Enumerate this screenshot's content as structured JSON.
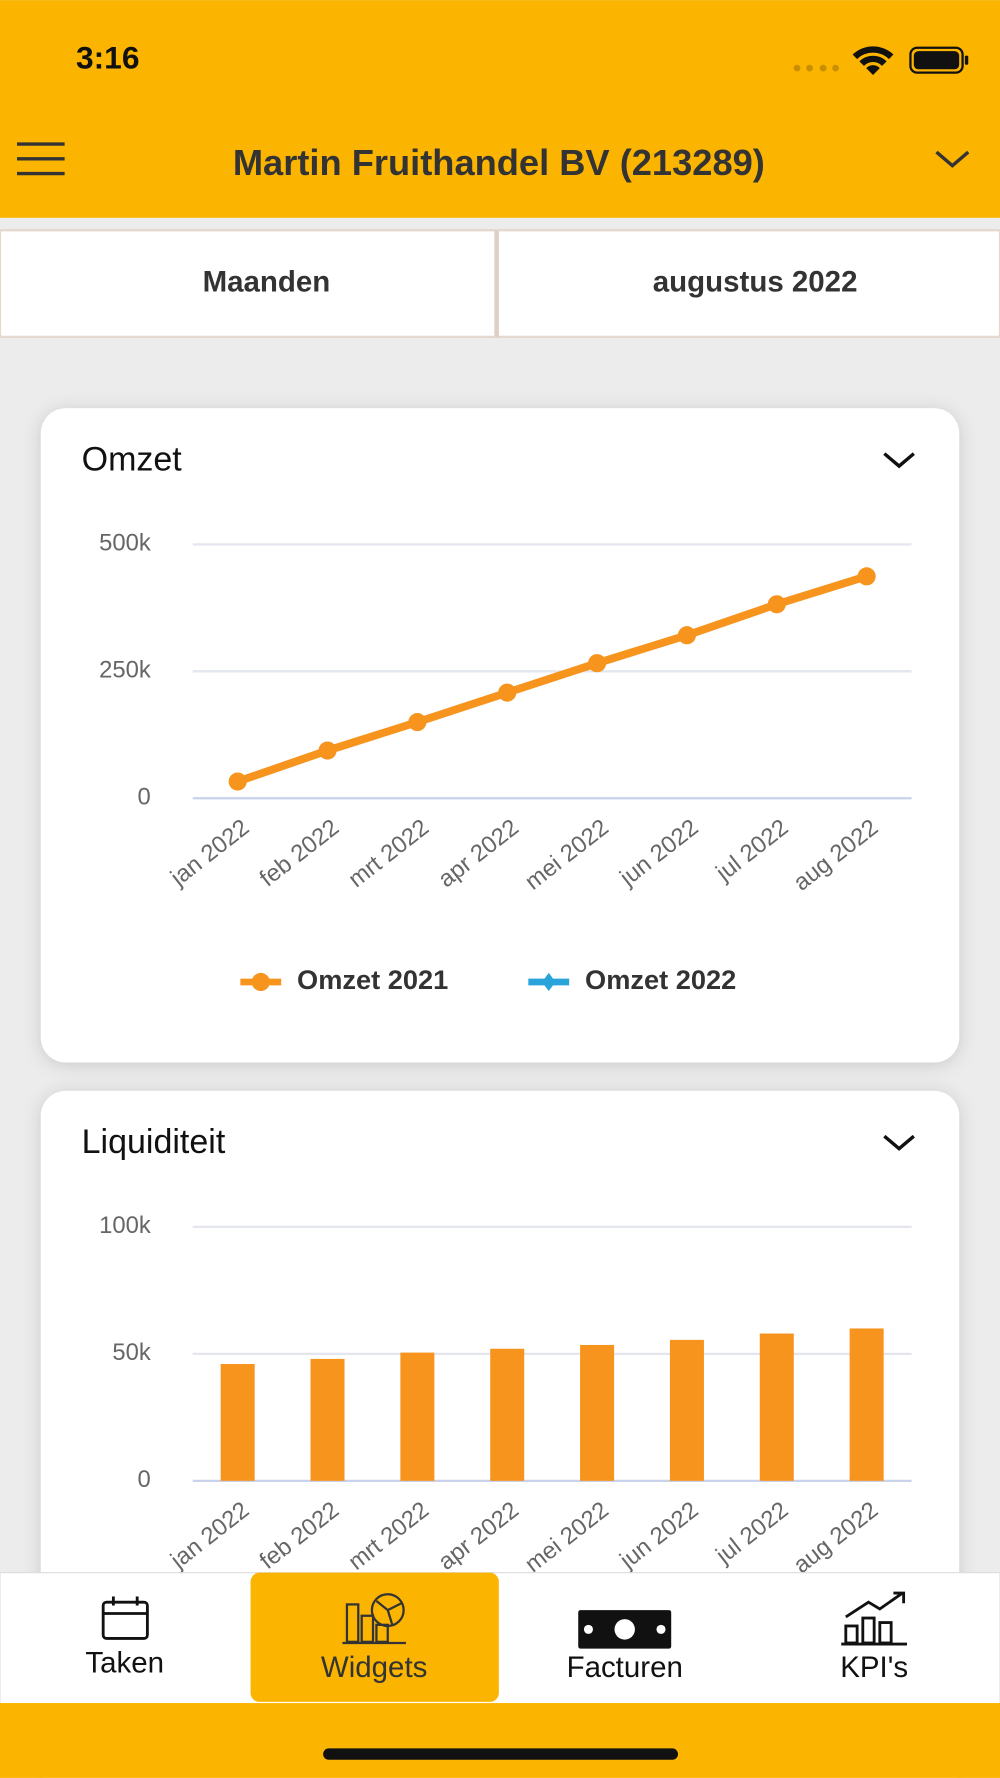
{
  "status_bar": {
    "time": "3:16"
  },
  "header": {
    "title": "Martin Fruithandel BV (213289)"
  },
  "tabs": [
    "Maanden",
    "augustus 2022"
  ],
  "chart_data": [
    {
      "type": "line",
      "title": "Omzet",
      "categories": [
        "jan 2022",
        "feb 2022",
        "mrt 2022",
        "apr 2022",
        "mei 2022",
        "jun 2022",
        "jul 2022",
        "aug 2022"
      ],
      "series": [
        {
          "name": "Omzet 2021",
          "color": "#f7941d",
          "values": [
            33000,
            94000,
            150000,
            208000,
            266000,
            321000,
            382000,
            437000
          ]
        },
        {
          "name": "Omzet 2022",
          "color": "#29a3da",
          "values": [
            null,
            null,
            null,
            null,
            null,
            null,
            null,
            null
          ]
        }
      ],
      "ylim": [
        0,
        500000
      ],
      "yticks": [
        0,
        {
          "value": 250000,
          "label": "250k"
        },
        {
          "value": 500000,
          "label": "500k"
        }
      ],
      "grid": true,
      "legend": "bottom"
    },
    {
      "type": "bar",
      "title": "Liquiditeit",
      "categories": [
        "jan 2022",
        "feb 2022",
        "mrt 2022",
        "apr 2022",
        "mei 2022",
        "jun 2022",
        "jul 2022",
        "aug 2022"
      ],
      "values": [
        46000,
        48000,
        50500,
        52000,
        53500,
        55500,
        58000,
        60000
      ],
      "color": "#f7941d",
      "ylim": [
        0,
        100000
      ],
      "yticks": [
        0,
        {
          "value": 50000,
          "label": "50k"
        },
        {
          "value": 100000,
          "label": "100k"
        }
      ],
      "grid": true
    }
  ],
  "nav": [
    "Taken",
    "Widgets",
    "Facturen",
    "KPI's"
  ]
}
